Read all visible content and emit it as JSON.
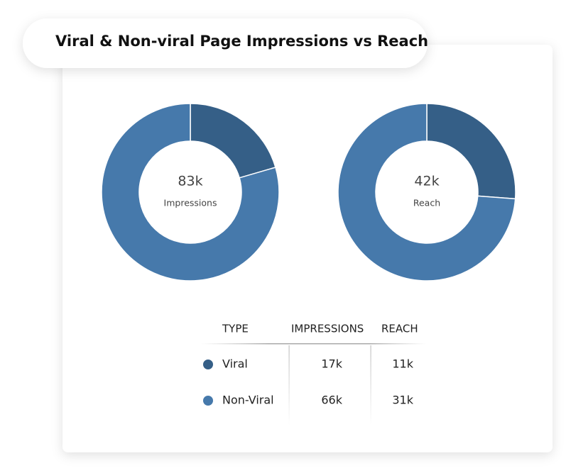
{
  "title": "Viral & Non-viral Page Impressions vs Reach",
  "chart_data": [
    {
      "type": "pie",
      "donut": true,
      "center_label": "83k",
      "center_caption": "Impressions",
      "values": [
        17,
        66
      ],
      "colors": [
        "#355f87",
        "#4679ab"
      ]
    },
    {
      "type": "pie",
      "donut": true,
      "center_label": "42k",
      "center_caption": "Reach",
      "values": [
        11,
        31
      ],
      "colors": [
        "#355f87",
        "#4679ab"
      ]
    }
  ],
  "table": {
    "columns": [
      "TYPE",
      "IMPRESSIONS",
      "REACH"
    ],
    "rows": [
      [
        "Viral",
        "17k",
        "11k"
      ],
      [
        "Non-Viral",
        "66k",
        "31k"
      ]
    ]
  }
}
